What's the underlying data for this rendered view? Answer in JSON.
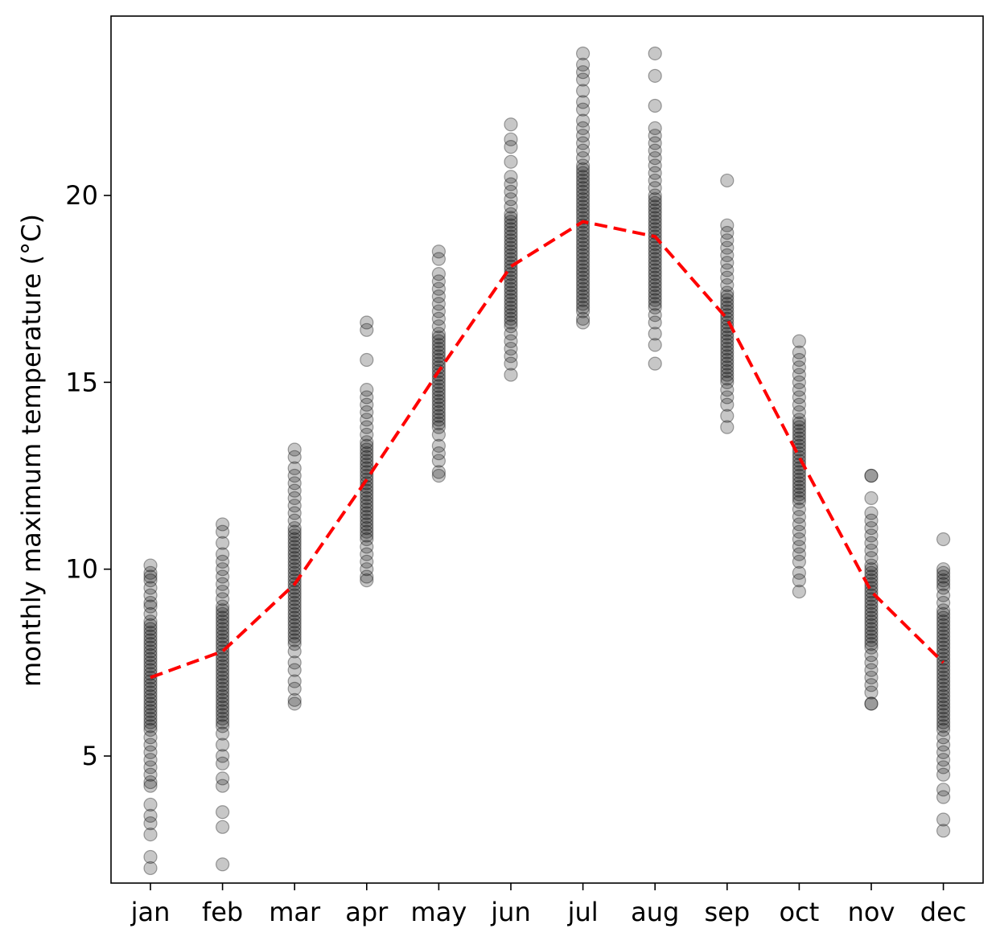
{
  "chart_data": {
    "type": "scatter",
    "title": "",
    "xlabel": "",
    "ylabel": "monthly maximum temperature (°C)",
    "categories": [
      "jan",
      "feb",
      "mar",
      "apr",
      "may",
      "jun",
      "jul",
      "aug",
      "sep",
      "oct",
      "nov",
      "dec"
    ],
    "yticks": [
      5,
      10,
      15,
      20
    ],
    "ylim": [
      1.6,
      24.8
    ],
    "grid": false,
    "legend": "none",
    "series": [
      {
        "type": "scatter",
        "color": "#000000",
        "opacity": 0.22,
        "points_by_month": [
          [
            10.1,
            9.9,
            9.8,
            9.7,
            9.5,
            9.3,
            9.1,
            9.0,
            8.8,
            8.6,
            8.5,
            8.4,
            8.3,
            8.2,
            8.1,
            8.0,
            7.9,
            7.8,
            7.7,
            7.6,
            7.5,
            7.4,
            7.3,
            7.2,
            7.1,
            7.0,
            6.9,
            6.8,
            6.7,
            6.6,
            6.5,
            6.4,
            6.3,
            6.2,
            6.1,
            6.0,
            5.9,
            5.8,
            5.7,
            5.5,
            5.3,
            5.1,
            4.9,
            4.7,
            4.5,
            4.3,
            4.2,
            3.7,
            3.4,
            3.2,
            2.9,
            2.3,
            2.0
          ],
          [
            11.2,
            11.0,
            10.7,
            10.4,
            10.2,
            10.0,
            9.8,
            9.6,
            9.4,
            9.2,
            9.0,
            8.9,
            8.8,
            8.7,
            8.6,
            8.5,
            8.4,
            8.3,
            8.2,
            8.1,
            8.0,
            7.9,
            7.8,
            7.7,
            7.6,
            7.5,
            7.4,
            7.3,
            7.2,
            7.1,
            7.0,
            6.9,
            6.8,
            6.7,
            6.6,
            6.5,
            6.4,
            6.3,
            6.2,
            6.1,
            6.0,
            5.9,
            5.8,
            5.6,
            5.3,
            5.0,
            4.8,
            4.4,
            4.2,
            3.5,
            3.1,
            2.1
          ],
          [
            13.2,
            13.0,
            12.7,
            12.5,
            12.3,
            12.1,
            11.9,
            11.7,
            11.5,
            11.3,
            11.1,
            11.0,
            10.9,
            10.8,
            10.7,
            10.6,
            10.5,
            10.4,
            10.3,
            10.2,
            10.1,
            10.0,
            9.9,
            9.8,
            9.7,
            9.6,
            9.5,
            9.4,
            9.3,
            9.2,
            9.1,
            9.0,
            8.9,
            8.8,
            8.7,
            8.6,
            8.5,
            8.4,
            8.3,
            8.2,
            8.1,
            8.0,
            7.8,
            7.5,
            7.3,
            7.0,
            6.8,
            6.5,
            6.4
          ],
          [
            16.6,
            16.4,
            15.6,
            14.8,
            14.6,
            14.4,
            14.2,
            14.0,
            13.8,
            13.6,
            13.4,
            13.3,
            13.2,
            13.1,
            13.0,
            12.9,
            12.8,
            12.7,
            12.6,
            12.5,
            12.4,
            12.3,
            12.2,
            12.1,
            12.0,
            11.9,
            11.8,
            11.7,
            11.6,
            11.5,
            11.4,
            11.3,
            11.2,
            11.1,
            11.0,
            10.9,
            10.8,
            10.6,
            10.4,
            10.2,
            10.0,
            9.8,
            9.7
          ],
          [
            18.5,
            18.3,
            17.9,
            17.7,
            17.5,
            17.3,
            17.1,
            16.9,
            16.7,
            16.5,
            16.3,
            16.2,
            16.1,
            16.0,
            15.9,
            15.8,
            15.7,
            15.6,
            15.5,
            15.4,
            15.3,
            15.2,
            15.1,
            15.0,
            14.9,
            14.8,
            14.7,
            14.6,
            14.5,
            14.4,
            14.3,
            14.2,
            14.1,
            14.0,
            13.9,
            13.8,
            13.6,
            13.3,
            13.1,
            12.9,
            12.6,
            12.5
          ],
          [
            21.9,
            21.5,
            21.3,
            20.9,
            20.5,
            20.3,
            20.1,
            19.9,
            19.7,
            19.5,
            19.4,
            19.3,
            19.2,
            19.1,
            19.0,
            18.9,
            18.8,
            18.7,
            18.6,
            18.5,
            18.4,
            18.3,
            18.2,
            18.1,
            18.0,
            17.9,
            17.8,
            17.7,
            17.6,
            17.5,
            17.4,
            17.3,
            17.2,
            17.1,
            17.0,
            16.9,
            16.8,
            16.7,
            16.6,
            16.5,
            16.3,
            16.1,
            15.9,
            15.7,
            15.5,
            15.2
          ],
          [
            23.8,
            23.5,
            23.3,
            23.1,
            22.8,
            22.5,
            22.3,
            22.0,
            21.8,
            21.6,
            21.4,
            21.2,
            21.0,
            20.8,
            20.7,
            20.6,
            20.5,
            20.4,
            20.3,
            20.2,
            20.1,
            20.0,
            19.9,
            19.8,
            19.7,
            19.6,
            19.5,
            19.4,
            19.3,
            19.2,
            19.1,
            19.0,
            18.9,
            18.8,
            18.7,
            18.6,
            18.5,
            18.4,
            18.3,
            18.2,
            18.1,
            18.0,
            17.9,
            17.8,
            17.7,
            17.6,
            17.5,
            17.4,
            17.3,
            17.2,
            17.1,
            17.0,
            16.9,
            16.7,
            16.6
          ],
          [
            23.8,
            23.2,
            22.4,
            21.8,
            21.6,
            21.4,
            21.2,
            21.0,
            20.8,
            20.6,
            20.4,
            20.2,
            20.0,
            19.9,
            19.8,
            19.7,
            19.6,
            19.5,
            19.4,
            19.3,
            19.2,
            19.1,
            19.0,
            18.9,
            18.8,
            18.7,
            18.6,
            18.5,
            18.4,
            18.3,
            18.2,
            18.1,
            18.0,
            17.9,
            17.8,
            17.7,
            17.6,
            17.5,
            17.4,
            17.3,
            17.2,
            17.1,
            17.0,
            16.8,
            16.6,
            16.3,
            16.0,
            15.5
          ],
          [
            20.4,
            19.2,
            19.0,
            18.8,
            18.6,
            18.4,
            18.2,
            18.0,
            17.8,
            17.6,
            17.4,
            17.3,
            17.2,
            17.1,
            17.0,
            16.9,
            16.8,
            16.7,
            16.6,
            16.5,
            16.4,
            16.3,
            16.2,
            16.1,
            16.0,
            15.9,
            15.8,
            15.7,
            15.6,
            15.5,
            15.4,
            15.3,
            15.2,
            15.1,
            15.0,
            14.8,
            14.6,
            14.4,
            14.1,
            13.8
          ],
          [
            16.1,
            15.8,
            15.6,
            15.4,
            15.2,
            15.0,
            14.8,
            14.6,
            14.4,
            14.2,
            14.0,
            13.9,
            13.8,
            13.7,
            13.6,
            13.5,
            13.4,
            13.3,
            13.2,
            13.1,
            13.0,
            12.9,
            12.8,
            12.7,
            12.6,
            12.5,
            12.4,
            12.3,
            12.2,
            12.1,
            12.0,
            11.9,
            11.8,
            11.6,
            11.4,
            11.2,
            11.0,
            10.8,
            10.6,
            10.4,
            10.2,
            9.9,
            9.7,
            9.4
          ],
          [
            12.5,
            12.5,
            11.9,
            11.5,
            11.3,
            11.1,
            10.9,
            10.7,
            10.5,
            10.3,
            10.1,
            10.0,
            9.9,
            9.8,
            9.7,
            9.6,
            9.5,
            9.4,
            9.3,
            9.2,
            9.1,
            9.0,
            8.9,
            8.8,
            8.7,
            8.6,
            8.5,
            8.4,
            8.3,
            8.2,
            8.1,
            8.0,
            7.9,
            7.7,
            7.5,
            7.3,
            7.1,
            6.9,
            6.7,
            6.4,
            6.4
          ],
          [
            10.8,
            10.0,
            9.9,
            9.8,
            9.7,
            9.6,
            9.5,
            9.3,
            9.1,
            8.9,
            8.8,
            8.7,
            8.6,
            8.5,
            8.4,
            8.3,
            8.2,
            8.1,
            8.0,
            7.9,
            7.8,
            7.7,
            7.6,
            7.5,
            7.4,
            7.3,
            7.2,
            7.1,
            7.0,
            6.9,
            6.8,
            6.7,
            6.6,
            6.5,
            6.4,
            6.3,
            6.2,
            6.1,
            6.0,
            5.9,
            5.8,
            5.7,
            5.5,
            5.3,
            5.1,
            4.9,
            4.7,
            4.5,
            4.1,
            3.9,
            3.3,
            3.0
          ]
        ]
      },
      {
        "type": "line",
        "color": "#ff0000",
        "style": "dashed",
        "values": [
          7.1,
          7.8,
          9.6,
          12.4,
          15.3,
          18.1,
          19.3,
          18.9,
          16.7,
          13.0,
          9.4,
          7.5
        ]
      }
    ]
  }
}
